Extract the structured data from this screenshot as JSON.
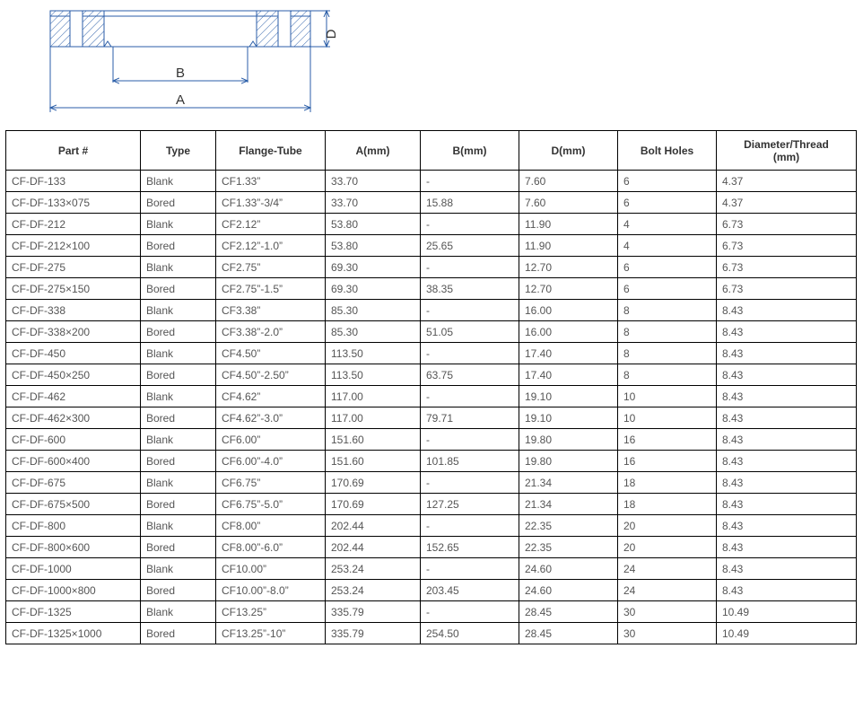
{
  "diagram": {
    "stroke": "#2b5ea8",
    "hatch_stroke": "#2b5ea8",
    "label_A": "A",
    "label_B": "B",
    "label_D": "D"
  },
  "table": {
    "headers": {
      "part": "Part #",
      "type": "Type",
      "flange": "Flange-Tube",
      "a": "A(mm)",
      "b": "B(mm)",
      "d": "D(mm)",
      "bolt": "Bolt Holes",
      "dia1": "Diameter/Thread",
      "dia2": "(mm)"
    },
    "rows": [
      {
        "part": "CF-DF-133",
        "type": "Blank",
        "flange": "CF1.33”",
        "a": "33.70",
        "b": "-",
        "d": "7.60",
        "bolt": "6",
        "dia": "4.37"
      },
      {
        "part": "CF-DF-133×075",
        "type": "Bored",
        "flange": "CF1.33”-3/4”",
        "a": "33.70",
        "b": "15.88",
        "d": "7.60",
        "bolt": "6",
        "dia": "4.37"
      },
      {
        "part": "CF-DF-212",
        "type": "Blank",
        "flange": "CF2.12”",
        "a": "53.80",
        "b": "-",
        "d": "11.90",
        "bolt": "4",
        "dia": "6.73"
      },
      {
        "part": "CF-DF-212×100",
        "type": "Bored",
        "flange": "CF2.12”-1.0”",
        "a": "53.80",
        "b": "25.65",
        "d": "11.90",
        "bolt": "4",
        "dia": "6.73"
      },
      {
        "part": "CF-DF-275",
        "type": "Blank",
        "flange": "CF2.75”",
        "a": "69.30",
        "b": "-",
        "d": "12.70",
        "bolt": "6",
        "dia": "6.73"
      },
      {
        "part": "CF-DF-275×150",
        "type": "Bored",
        "flange": "CF2.75”-1.5”",
        "a": "69.30",
        "b": "38.35",
        "d": "12.70",
        "bolt": "6",
        "dia": "6.73"
      },
      {
        "part": "CF-DF-338",
        "type": "Blank",
        "flange": "CF3.38”",
        "a": "85.30",
        "b": "-",
        "d": "16.00",
        "bolt": "8",
        "dia": "8.43"
      },
      {
        "part": "CF-DF-338×200",
        "type": "Bored",
        "flange": "CF3.38”-2.0”",
        "a": "85.30",
        "b": "51.05",
        "d": "16.00",
        "bolt": "8",
        "dia": "8.43"
      },
      {
        "part": "CF-DF-450",
        "type": "Blank",
        "flange": "CF4.50”",
        "a": "113.50",
        "b": "-",
        "d": "17.40",
        "bolt": "8",
        "dia": "8.43"
      },
      {
        "part": "CF-DF-450×250",
        "type": "Bored",
        "flange": "CF4.50”-2.50”",
        "a": "113.50",
        "b": "63.75",
        "d": "17.40",
        "bolt": "8",
        "dia": "8.43"
      },
      {
        "part": "CF-DF-462",
        "type": "Blank",
        "flange": "CF4.62”",
        "a": "117.00",
        "b": "-",
        "d": "19.10",
        "bolt": "10",
        "dia": "8.43"
      },
      {
        "part": "CF-DF-462×300",
        "type": "Bored",
        "flange": "CF4.62”-3.0”",
        "a": "117.00",
        "b": "79.71",
        "d": "19.10",
        "bolt": "10",
        "dia": "8.43"
      },
      {
        "part": "CF-DF-600",
        "type": "Blank",
        "flange": "CF6.00”",
        "a": "151.60",
        "b": "-",
        "d": "19.80",
        "bolt": "16",
        "dia": "8.43"
      },
      {
        "part": "CF-DF-600×400",
        "type": "Bored",
        "flange": "CF6.00”-4.0”",
        "a": "151.60",
        "b": "101.85",
        "d": "19.80",
        "bolt": "16",
        "dia": "8.43"
      },
      {
        "part": "CF-DF-675",
        "type": "Blank",
        "flange": "CF6.75”",
        "a": "170.69",
        "b": "-",
        "d": "21.34",
        "bolt": "18",
        "dia": "8.43"
      },
      {
        "part": "CF-DF-675×500",
        "type": "Bored",
        "flange": "CF6.75”-5.0”",
        "a": "170.69",
        "b": "127.25",
        "d": "21.34",
        "bolt": "18",
        "dia": "8.43"
      },
      {
        "part": "CF-DF-800",
        "type": "Blank",
        "flange": "CF8.00”",
        "a": "202.44",
        "b": "-",
        "d": "22.35",
        "bolt": "20",
        "dia": "8.43"
      },
      {
        "part": "CF-DF-800×600",
        "type": "Bored",
        "flange": "CF8.00”-6.0”",
        "a": "202.44",
        "b": "152.65",
        "d": "22.35",
        "bolt": "20",
        "dia": "8.43"
      },
      {
        "part": "CF-DF-1000",
        "type": "Blank",
        "flange": "CF10.00”",
        "a": "253.24",
        "b": "-",
        "d": "24.60",
        "bolt": "24",
        "dia": "8.43"
      },
      {
        "part": "CF-DF-1000×800",
        "type": "Bored",
        "flange": "CF10.00”-8.0”",
        "a": "253.24",
        "b": "203.45",
        "d": "24.60",
        "bolt": "24",
        "dia": "8.43"
      },
      {
        "part": "CF-DF-1325",
        "type": "Blank",
        "flange": "CF13.25”",
        "a": "335.79",
        "b": "-",
        "d": "28.45",
        "bolt": "30",
        "dia": "10.49"
      },
      {
        "part": "CF-DF-1325×1000",
        "type": "Bored",
        "flange": "CF13.25”-10”",
        "a": "335.79",
        "b": "254.50",
        "d": "28.45",
        "bolt": "30",
        "dia": "10.49"
      }
    ]
  }
}
